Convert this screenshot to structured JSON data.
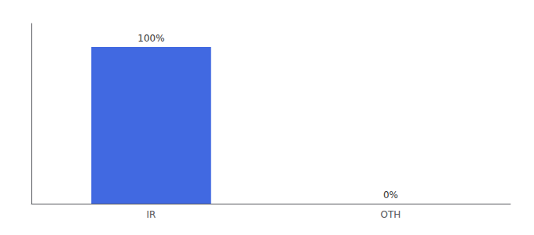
{
  "chart_data": {
    "type": "bar",
    "categories": [
      "IR",
      "OTH"
    ],
    "values": [
      100,
      0
    ],
    "value_labels": [
      "100%",
      "0%"
    ],
    "data_labels": true,
    "color": "#4169e1",
    "ylim": [
      0,
      115
    ],
    "yticks": [],
    "tick_labels": "x",
    "grid": false
  }
}
